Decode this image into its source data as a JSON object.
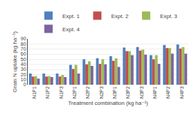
{
  "chart_data": {
    "type": "bar",
    "xlabel": "Treatment combination (kg ha⁻¹)",
    "ylabel": "Grain N uptake (kg ha⁻¹)",
    "categories": [
      "N1P1",
      "N1P2",
      "N1P3",
      "N2P1",
      "N2P2",
      "N2P3",
      "N3P1",
      "N3P2",
      "N3P3",
      "N4P1",
      "N4P2",
      "N4P3"
    ],
    "series": [
      {
        "name": "Expt. 1",
        "color": "#4F81BD",
        "values": [
          22,
          22,
          22,
          39,
          50,
          52,
          56,
          73,
          74,
          58,
          78,
          79
        ]
      },
      {
        "name": "Expt. 2",
        "color": "#C0504D",
        "values": [
          16,
          16,
          16,
          31,
          40,
          41,
          47,
          66,
          67,
          50,
          72,
          71
        ]
      },
      {
        "name": "Expt. 3",
        "color": "#9BBB59",
        "values": [
          17,
          17,
          19,
          39,
          46,
          50,
          52,
          66,
          69,
          58,
          72,
          74
        ]
      },
      {
        "name": "Expt. 4",
        "color": "#7B64A0",
        "values": [
          12,
          15,
          15,
          22,
          37,
          40,
          35,
          58,
          59,
          41,
          61,
          61
        ]
      }
    ],
    "ylim": [
      0,
      90
    ],
    "yticks": [
      0,
      10,
      20,
      30,
      40,
      50,
      60,
      70,
      80,
      90
    ],
    "grid": true,
    "legend": "top"
  }
}
